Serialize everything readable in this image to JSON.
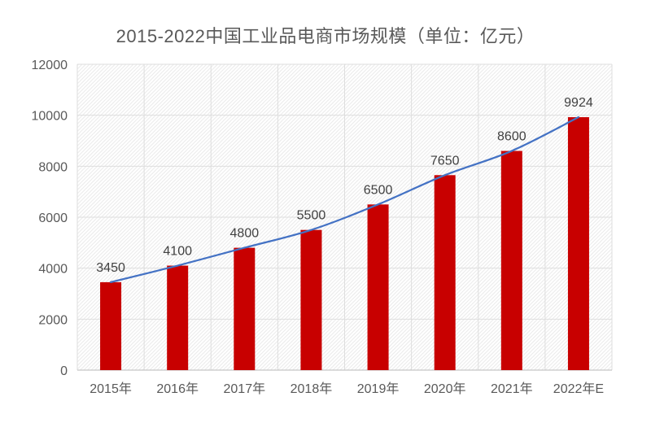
{
  "chart_data": {
    "type": "bar",
    "subtype": "bars-with-smooth-trend-line",
    "title": "2015-2022中国工业品电商市场规模（单位：亿元）",
    "unit_label": "亿元",
    "categories": [
      "2015年",
      "2016年",
      "2017年",
      "2018年",
      "2019年",
      "2020年",
      "2021年",
      "2022年E"
    ],
    "values": [
      3450,
      4100,
      4800,
      5500,
      6500,
      7650,
      8600,
      9924
    ],
    "data_labels": [
      "3450",
      "4100",
      "4800",
      "5500",
      "6500",
      "7650",
      "8600",
      "9924"
    ],
    "trend_line": {
      "type": "line",
      "smooth": true,
      "values_follow_bars": true,
      "values": [
        3450,
        4100,
        4800,
        5500,
        6500,
        7650,
        8600,
        9924
      ]
    },
    "xlabel": "",
    "ylabel": "",
    "ylim": [
      0,
      12000
    ],
    "ytick_step": 2000,
    "ytick_labels": [
      "0",
      "2000",
      "4000",
      "6000",
      "8000",
      "10000",
      "12000"
    ],
    "grid": true,
    "legend": "none",
    "plot_background": "diagonal-hatch"
  },
  "style": {
    "bar_color": "#c80000",
    "line_color": "#4472c4",
    "grid_color": "#dedede",
    "axis_line_color": "#c6c6c6",
    "hatch_color": "#ebebeb",
    "tick_label_color": "#595959",
    "category_label_color": "#595959",
    "data_label_color": "#404040",
    "title_color": "#595959",
    "background": "#ffffff"
  }
}
